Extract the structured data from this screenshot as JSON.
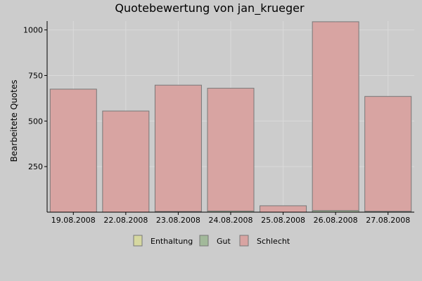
{
  "chart_data": {
    "type": "bar",
    "stacked": true,
    "title": "Quotebewertung von jan_krueger",
    "xlabel": "",
    "ylabel": "Bearbeitete Quotes",
    "ylim": [
      0,
      1050
    ],
    "yticks": [
      250,
      500,
      750,
      1000
    ],
    "grid": true,
    "legend_position": "bottom",
    "categories": [
      "19.08.2008",
      "22.08.2008",
      "23.08.2008",
      "24.08.2008",
      "25.08.2008",
      "26.08.2008",
      "27.08.2008"
    ],
    "series": [
      {
        "name": "Enthaltung",
        "color": "#d6d8a0",
        "values": [
          0,
          0,
          0,
          0,
          0,
          0,
          0
        ]
      },
      {
        "name": "Gut",
        "color": "#a2b99a",
        "values": [
          0,
          0,
          4,
          6,
          0,
          9,
          5
        ]
      },
      {
        "name": "Schlecht",
        "color": "#d8a4a2",
        "values": [
          675,
          555,
          693,
          674,
          35,
          1036,
          630
        ]
      }
    ]
  }
}
